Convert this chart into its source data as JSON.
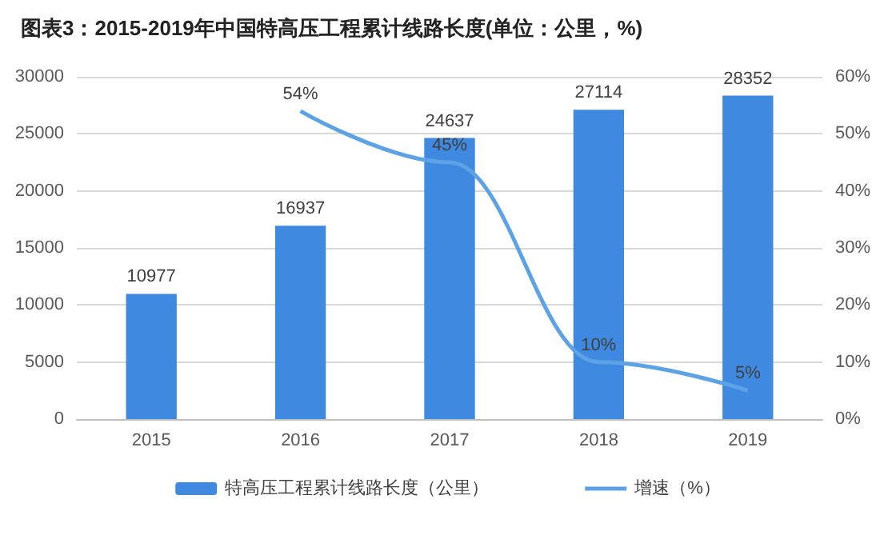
{
  "chart_data": {
    "type": "bar",
    "title": "图表3：2015-2019年中国特高压工程累计线路长度(单位：公里，%)",
    "categories": [
      "2015",
      "2016",
      "2017",
      "2018",
      "2019"
    ],
    "series": [
      {
        "name": "特高压工程累计线路长度（公里）",
        "color": "#3f89e0",
        "values": [
          10977,
          16937,
          24637,
          27114,
          28352
        ]
      },
      {
        "name": "增速（%）",
        "type": "line",
        "axis": "y2",
        "color": "#5ea2e6",
        "values": [
          null,
          54,
          45,
          10,
          5
        ],
        "value_labels": [
          null,
          "54%",
          "45%",
          "10%",
          "5%"
        ]
      }
    ],
    "data_labels": true,
    "ylim": [
      0,
      30000
    ],
    "yticks": [
      0,
      5000,
      10000,
      15000,
      20000,
      25000,
      30000
    ],
    "y2lim": [
      0,
      60
    ],
    "y2ticks": [
      {
        "value": 0,
        "label": "0%"
      },
      {
        "value": 10,
        "label": "10%"
      },
      {
        "value": 20,
        "label": "20%"
      },
      {
        "value": 30,
        "label": "30%"
      },
      {
        "value": 40,
        "label": "40%"
      },
      {
        "value": 50,
        "label": "50%"
      },
      {
        "value": 60,
        "label": "60%"
      }
    ],
    "grid": "y",
    "legend": "bottom",
    "marker": "none",
    "line_style": "solid"
  }
}
